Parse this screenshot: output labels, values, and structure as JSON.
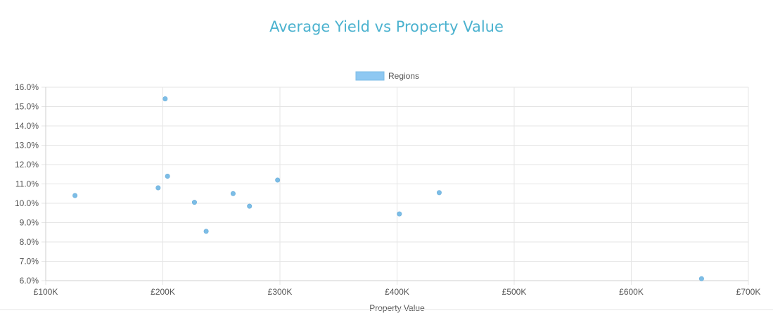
{
  "chart_data": {
    "type": "scatter",
    "title": "Average Yield vs Property Value",
    "xlabel": "Property Value",
    "ylabel": "",
    "xlim": [
      100000,
      700000
    ],
    "ylim": [
      6.0,
      16.0
    ],
    "grid": true,
    "legend_position": "top-center",
    "x_ticks": [
      "£100K",
      "£200K",
      "£300K",
      "£400K",
      "£500K",
      "£600K",
      "£700K"
    ],
    "y_ticks": [
      "16.0%",
      "15.0%",
      "14.0%",
      "13.0%",
      "12.0%",
      "11.0%",
      "10.0%",
      "9.0%",
      "8.0%",
      "7.0%",
      "6.0%"
    ],
    "x_tick_values": [
      100000,
      200000,
      300000,
      400000,
      500000,
      600000,
      700000
    ],
    "y_tick_values": [
      16,
      15,
      14,
      13,
      12,
      11,
      10,
      9,
      8,
      7,
      6
    ],
    "series": [
      {
        "name": "Regions",
        "color": "#7cbde6",
        "legend_color": "#8ec8f2",
        "points": [
          {
            "x": 125000,
            "y": 10.4
          },
          {
            "x": 196000,
            "y": 10.8
          },
          {
            "x": 202000,
            "y": 15.4
          },
          {
            "x": 204000,
            "y": 11.4
          },
          {
            "x": 227000,
            "y": 10.05
          },
          {
            "x": 237000,
            "y": 8.55
          },
          {
            "x": 260000,
            "y": 10.5
          },
          {
            "x": 274000,
            "y": 9.85
          },
          {
            "x": 298000,
            "y": 11.2
          },
          {
            "x": 402000,
            "y": 9.45
          },
          {
            "x": 436000,
            "y": 10.55
          },
          {
            "x": 660000,
            "y": 6.1
          }
        ]
      }
    ]
  }
}
